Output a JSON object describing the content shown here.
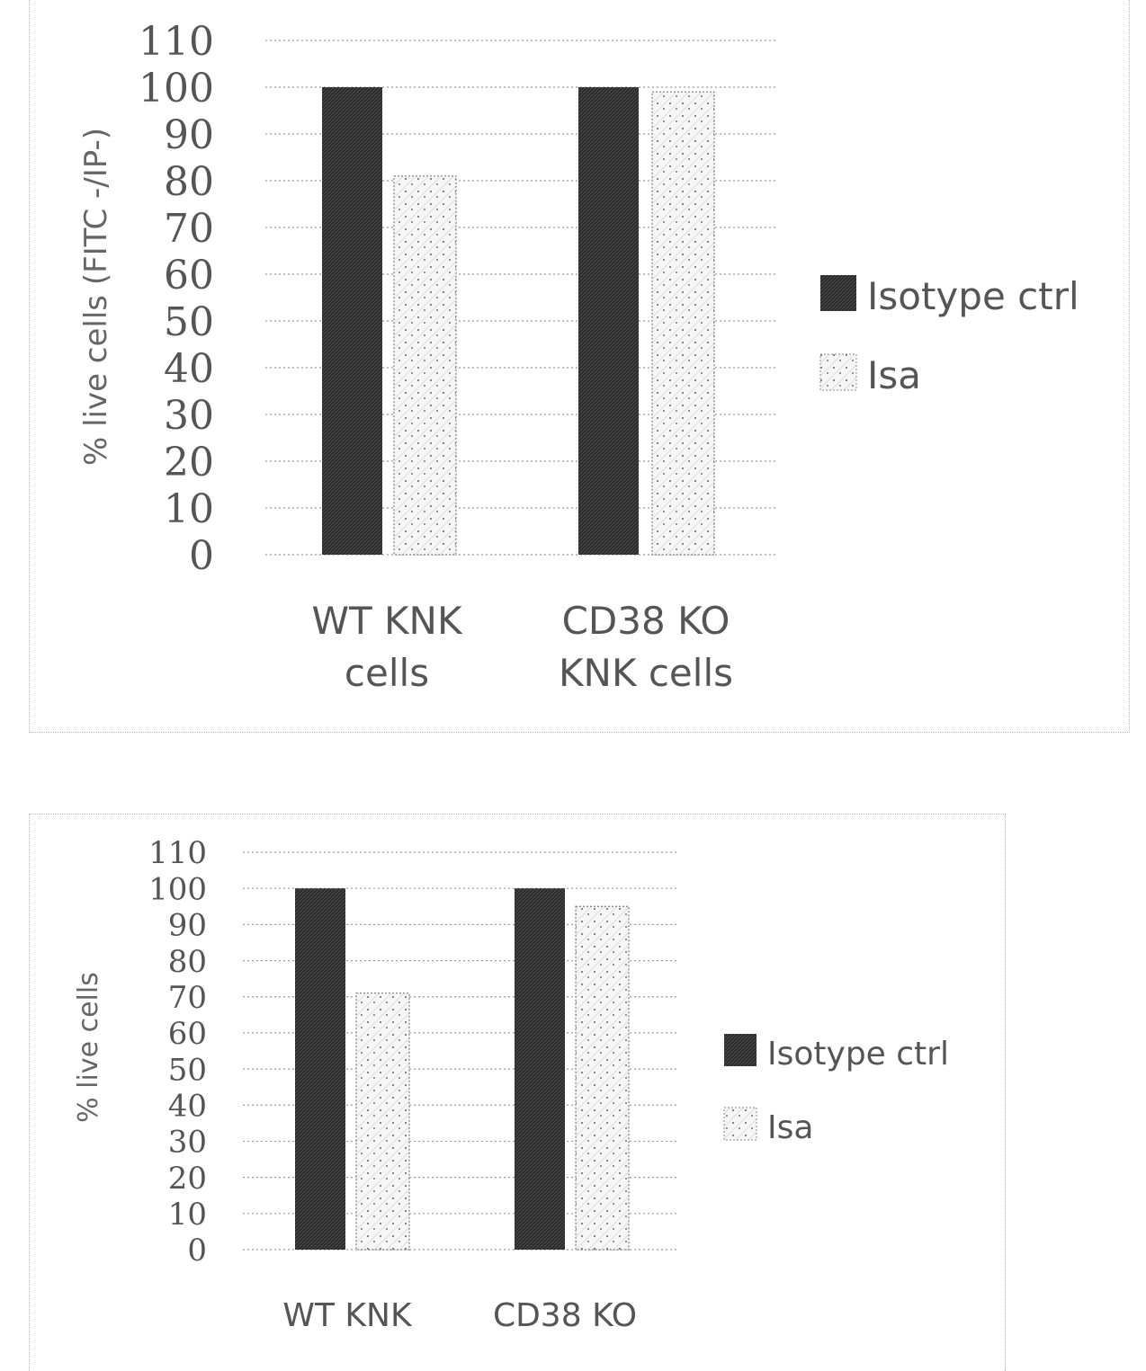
{
  "chart_data": [
    {
      "type": "bar",
      "title": "",
      "ylabel": "% live cells (FITC -/IP-)",
      "ylim": [
        0,
        110
      ],
      "yticks": [
        "0",
        "10",
        "20",
        "30",
        "40",
        "50",
        "60",
        "70",
        "80",
        "90",
        "100",
        "110"
      ],
      "categories": [
        [
          "WT KNK",
          "cells"
        ],
        [
          "CD38 KO",
          "KNK cells"
        ]
      ],
      "series": [
        {
          "name": "Isotype ctrl",
          "values": [
            100,
            100
          ]
        },
        {
          "name": "Isa",
          "values": [
            81,
            99
          ]
        }
      ],
      "grid": true,
      "legend": "right"
    },
    {
      "type": "bar",
      "title": "",
      "ylabel": "% live cells",
      "ylim": [
        0,
        110
      ],
      "yticks": [
        "0",
        "10",
        "20",
        "30",
        "40",
        "50",
        "60",
        "70",
        "80",
        "90",
        "100",
        "110"
      ],
      "categories": [
        [
          "WT KNK",
          ""
        ],
        [
          "CD38 KO",
          ""
        ]
      ],
      "series": [
        {
          "name": "Isotype ctrl",
          "values": [
            100,
            100
          ]
        },
        {
          "name": "Isa",
          "values": [
            71,
            95
          ]
        }
      ],
      "grid": true,
      "legend": "right"
    }
  ],
  "colors": {
    "isotype": "#2b2b2b",
    "isa_fill": "#f4f4f4",
    "grid": "#9a9a9a"
  }
}
